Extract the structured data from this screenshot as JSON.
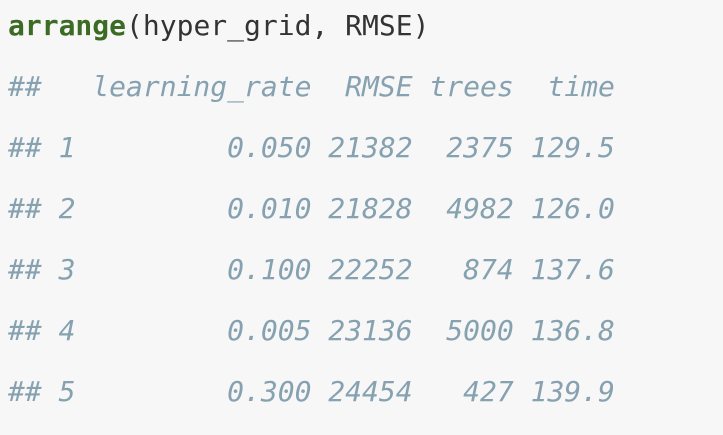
{
  "code": {
    "function_name": "arrange",
    "arguments": "(hyper_grid, RMSE)"
  },
  "output": {
    "header": "##   learning_rate  RMSE trees  time",
    "rows": [
      "## 1         0.050 21382  2375 129.5",
      "## 2         0.010 21828  4982 126.0",
      "## 3         0.100 22252   874 137.6",
      "## 4         0.005 23136  5000 136.8",
      "## 5         0.300 24454   427 139.9"
    ]
  },
  "colors": {
    "background": "#f7f7f7",
    "function": "#3c6b23",
    "code_text": "#333333",
    "comment_output": "#86a1b0"
  }
}
